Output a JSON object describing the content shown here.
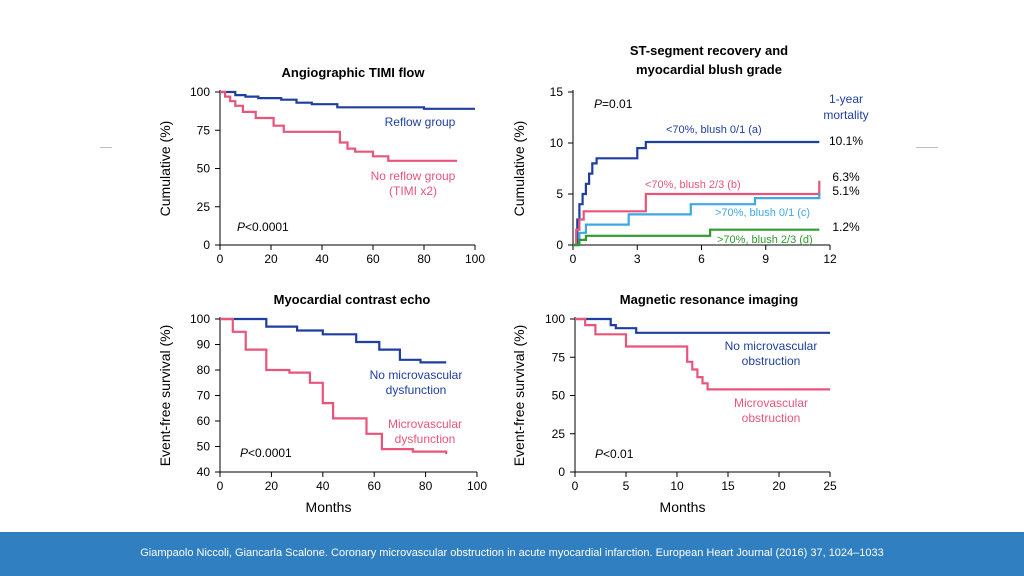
{
  "footer": {
    "citation": "Giampaolo Niccoli, Giancarla Scalone. Coronary microvascular obstruction in acute myocardial infarction. European Heart Journal (2016) 37, 1024–1033"
  },
  "colors": {
    "blue": "#1f3f9f",
    "pink": "#e8557a",
    "lightblue": "#3ea8e5",
    "green": "#2e9a2e",
    "footer": "#2f7fc1"
  },
  "chart_data": [
    {
      "id": "timi",
      "type": "line",
      "title": [
        "Angiographic TIMI flow"
      ],
      "ylabel": "Cumulative (%)",
      "xlabel": "",
      "xlim": [
        0,
        100
      ],
      "ylim": [
        0,
        100
      ],
      "xticks": [
        0,
        20,
        40,
        60,
        80,
        100
      ],
      "yticks": [
        0,
        25,
        50,
        75,
        100
      ],
      "pvalue": {
        "p": "P",
        "rest": "<0.0001"
      },
      "series": [
        {
          "name": "Reflow group",
          "color": "blue",
          "x": [
            0,
            6,
            10,
            15,
            24,
            30,
            36,
            46,
            60,
            80,
            100
          ],
          "y": [
            100,
            98,
            97,
            96,
            95,
            93,
            92,
            90,
            90,
            89,
            89
          ]
        },
        {
          "name": "No reflow group (TIMI x2)",
          "color": "pink",
          "x": [
            0,
            2,
            4,
            6,
            9,
            14,
            21,
            25,
            47,
            50,
            53,
            60,
            66,
            93
          ],
          "y": [
            100,
            97,
            94,
            91,
            87,
            83,
            78,
            74,
            67,
            63,
            61,
            58,
            55,
            55
          ]
        }
      ],
      "annotations": [
        {
          "lines": [
            "Reflow group"
          ],
          "color": "blue"
        },
        {
          "lines": [
            "No reflow group",
            "(TIMI x2)"
          ],
          "color": "pink"
        }
      ]
    },
    {
      "id": "st",
      "type": "line",
      "title": [
        "ST-segment recovery and",
        "myocardial blush grade"
      ],
      "ylabel": "Cumulative (%)",
      "xlabel": "",
      "xlim": [
        0,
        12
      ],
      "ylim": [
        0,
        15
      ],
      "xticks": [
        0,
        3,
        6,
        9,
        12
      ],
      "yticks": [
        0,
        5,
        10,
        15
      ],
      "pvalue": {
        "p": "P",
        "rest": "=0.01"
      },
      "right_header": [
        "1-year",
        "mortality"
      ],
      "series": [
        {
          "name": "<70%, blush 0/1 (a)",
          "color": "blue",
          "end_label": "10.1%",
          "x": [
            0,
            0.2,
            0.3,
            0.45,
            0.6,
            0.75,
            0.9,
            1.1,
            2.5,
            3.0,
            3.4,
            4.0,
            11.5
          ],
          "y": [
            0,
            2.5,
            4.0,
            5.0,
            6.0,
            7.0,
            8.0,
            8.5,
            8.5,
            9.5,
            10.1,
            10.1,
            10.1
          ]
        },
        {
          "name": "<70%, blush 2/3 (b)",
          "color": "pink",
          "end_label": "6.3%",
          "x": [
            0,
            0.15,
            0.3,
            0.5,
            3.3,
            3.4,
            11.4,
            11.5
          ],
          "y": [
            0,
            1.5,
            2.5,
            3.3,
            3.3,
            5.0,
            5.0,
            6.3
          ]
        },
        {
          "name": ">70%, blush 0/1 (c)",
          "color": "lightblue",
          "end_label": "5.1%",
          "x": [
            0,
            0.3,
            0.6,
            2.6,
            5.5,
            8.5,
            11.5
          ],
          "y": [
            0,
            1.2,
            2.0,
            3.0,
            4.0,
            4.6,
            5.1
          ]
        },
        {
          "name": ">70%, blush 2/3 (d)",
          "color": "green",
          "end_label": "1.2%",
          "x": [
            0,
            0.3,
            0.6,
            6.4,
            11.5
          ],
          "y": [
            0,
            0.5,
            0.9,
            1.5,
            1.5
          ]
        }
      ]
    },
    {
      "id": "echo",
      "type": "line",
      "title": [
        "Myocardial contrast echo"
      ],
      "ylabel": "Event-free survival (%)",
      "xlabel": "Months",
      "xlim": [
        0,
        100
      ],
      "ylim": [
        40,
        100
      ],
      "xticks": [
        0,
        20,
        40,
        60,
        80,
        100
      ],
      "yticks": [
        40,
        50,
        60,
        70,
        80,
        90,
        100
      ],
      "pvalue": {
        "p": "P",
        "rest": "<0.0001"
      },
      "series": [
        {
          "name": "No microvascular dysfunction",
          "color": "blue",
          "x": [
            0,
            8,
            18,
            30,
            40,
            53,
            62,
            70,
            78,
            88
          ],
          "y": [
            100,
            100,
            97,
            95.5,
            94,
            91,
            88,
            84,
            83,
            83
          ]
        },
        {
          "name": "Microvascular dysfunction",
          "color": "pink",
          "x": [
            0,
            5,
            10,
            18,
            27,
            35,
            40,
            44,
            53,
            57,
            63,
            75,
            88
          ],
          "y": [
            100,
            95,
            88,
            80,
            79,
            75,
            67,
            61,
            61,
            55,
            49,
            48,
            47
          ]
        }
      ],
      "annotations": [
        {
          "lines": [
            "No microvascular",
            "dysfunction"
          ],
          "color": "blue"
        },
        {
          "lines": [
            "Microvascular",
            "dysfunction"
          ],
          "color": "pink"
        }
      ]
    },
    {
      "id": "mri",
      "type": "line",
      "title": [
        "Magnetic resonance imaging"
      ],
      "ylabel": "Event-free survival (%)",
      "xlabel": "Months",
      "xlim": [
        0,
        25
      ],
      "ylim": [
        0,
        100
      ],
      "xticks": [
        0,
        5,
        10,
        15,
        20,
        25
      ],
      "yticks": [
        0,
        25,
        50,
        75,
        100
      ],
      "pvalue": {
        "p": "P",
        "rest": "<0.01"
      },
      "series": [
        {
          "name": "No microvascular obstruction",
          "color": "blue",
          "x": [
            0,
            2.5,
            3.5,
            4,
            6,
            25
          ],
          "y": [
            100,
            100,
            96,
            94,
            91,
            91
          ]
        },
        {
          "name": "Microvascular obstruction",
          "color": "pink",
          "x": [
            0,
            1,
            2,
            5,
            11,
            11.5,
            12,
            12.5,
            13,
            25
          ],
          "y": [
            100,
            96,
            90,
            82,
            72,
            67,
            62,
            58,
            54,
            54
          ]
        }
      ],
      "annotations": [
        {
          "lines": [
            "No microvascular",
            "obstruction"
          ],
          "color": "blue"
        },
        {
          "lines": [
            "Microvascular",
            "obstruction"
          ],
          "color": "pink"
        }
      ]
    }
  ]
}
